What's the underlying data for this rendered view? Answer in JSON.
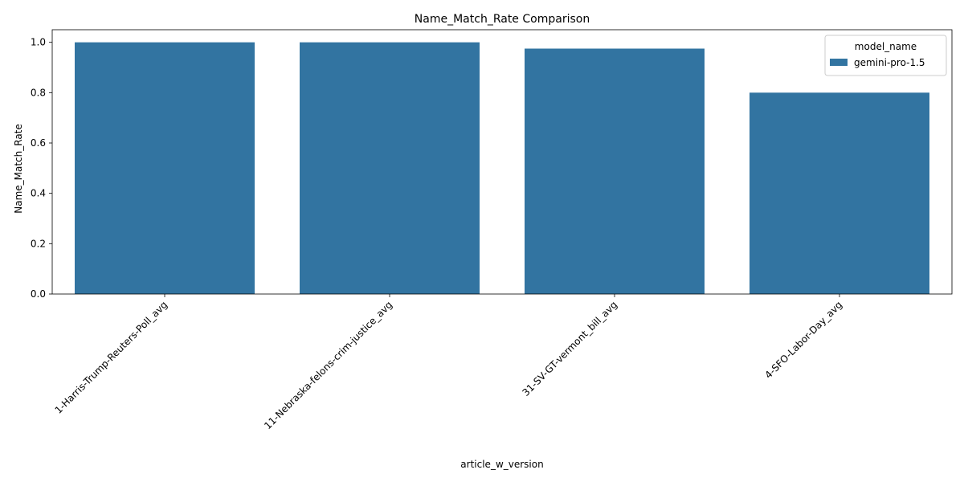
{
  "chart_data": {
    "type": "bar",
    "title": "Name_Match_Rate Comparison",
    "xlabel": "article_w_version",
    "ylabel": "Name_Match_Rate",
    "categories": [
      "1-Harris-Trump-Reuters-Poll_avg",
      "11-Nebraska-felons-crim-justice_avg",
      "31-SV-GT-vermont_bill_avg",
      "4-SFO-Labor-Day_avg"
    ],
    "series": [
      {
        "name": "gemini-pro-1.5",
        "values": [
          1.0,
          1.0,
          0.975,
          0.8
        ]
      }
    ],
    "ylim": [
      0,
      1.05
    ],
    "yticks": [
      "0.0",
      "0.2",
      "0.4",
      "0.6",
      "0.8",
      "1.0"
    ],
    "grid": false,
    "legend": {
      "title": "model_name",
      "placement": "top-right"
    },
    "colors": {
      "bar": "#3274a1"
    }
  }
}
